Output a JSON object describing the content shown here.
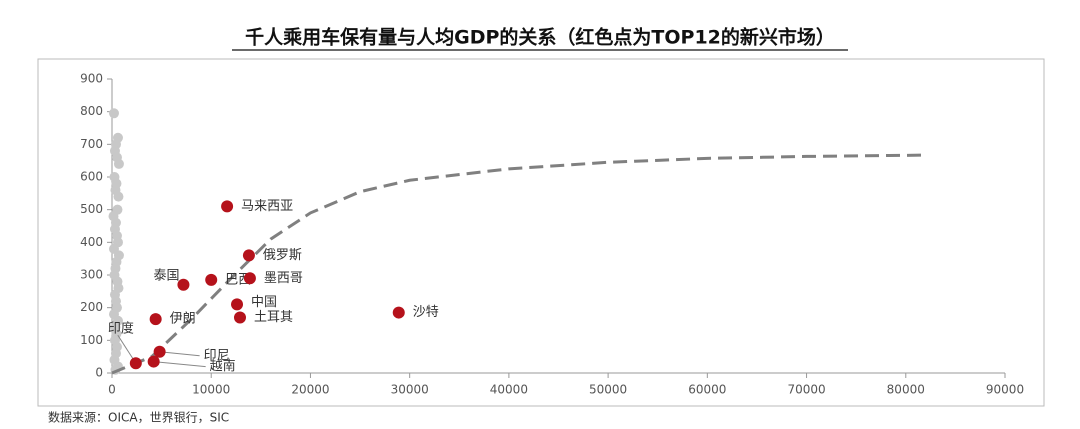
{
  "chart_data": {
    "type": "scatter",
    "title": "千人乘用车保有量与人均GDP的关系（红色点为TOP12的新兴市场）",
    "source": "数据来源：OICA，世界银行，SIC",
    "xlim": [
      0,
      90000
    ],
    "xticks": [
      0,
      10000,
      20000,
      30000,
      40000,
      50000,
      60000,
      70000,
      80000,
      90000
    ],
    "ylim": [
      0,
      900
    ],
    "yticks": [
      0,
      100,
      200,
      300,
      400,
      500,
      600,
      700,
      800,
      900
    ],
    "highlight": {
      "color": "#b5121b",
      "labels": [
        "马来西亚",
        "俄罗斯",
        "泰国",
        "巴西",
        "墨西哥",
        "中国",
        "土耳其",
        "沙特",
        "伊朗",
        "印度",
        "印尼",
        "越南"
      ],
      "x": [
        11600,
        13800,
        7200,
        10000,
        13900,
        12600,
        12900,
        28900,
        4400,
        2400,
        4800,
        4200
      ],
      "y": [
        510,
        360,
        270,
        285,
        290,
        210,
        170,
        185,
        165,
        30,
        65,
        35
      ]
    },
    "others": {
      "color": "#c8c8c8",
      "x": [
        200,
        600,
        400,
        300,
        500,
        700,
        250,
        450,
        350,
        650,
        550,
        150,
        400,
        300,
        500,
        600,
        200,
        700,
        450,
        350,
        250,
        550,
        650,
        300,
        400,
        500,
        200,
        600,
        350,
        450,
        300,
        500,
        400,
        250,
        600,
        350
      ],
      "y": [
        795,
        720,
        700,
        680,
        660,
        640,
        600,
        580,
        560,
        540,
        500,
        480,
        460,
        440,
        420,
        400,
        380,
        360,
        340,
        320,
        300,
        280,
        260,
        240,
        220,
        200,
        180,
        160,
        140,
        120,
        100,
        80,
        60,
        40,
        20,
        10
      ]
    },
    "trend": {
      "color": "#808080",
      "x": [
        0,
        4000,
        8000,
        12000,
        16000,
        20000,
        25000,
        30000,
        40000,
        50000,
        60000,
        70000,
        82000
      ],
      "y": [
        0,
        50,
        165,
        290,
        410,
        490,
        555,
        590,
        625,
        645,
        657,
        663,
        667
      ]
    }
  }
}
